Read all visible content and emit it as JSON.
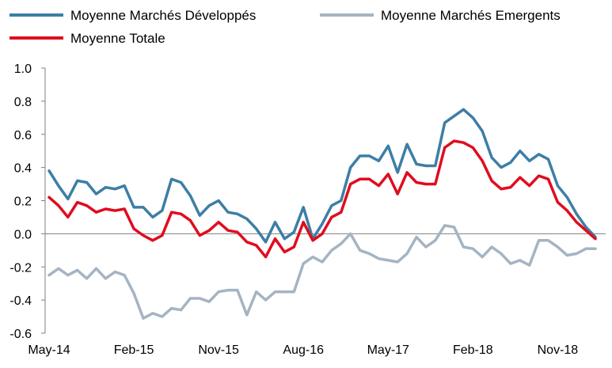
{
  "chart_data": {
    "type": "line",
    "title": "",
    "xlabel": "",
    "ylabel": "",
    "ylim": [
      -0.6,
      1.0
    ],
    "yticks": [
      "1.0",
      "0.8",
      "0.6",
      "0.4",
      "0.2",
      "0.0",
      "-0.2",
      "-0.4",
      "-0.6"
    ],
    "x_tick_labels": [
      "May-14",
      "Feb-15",
      "Nov-15",
      "Aug-16",
      "May-17",
      "Feb-18",
      "Nov-18"
    ],
    "x_tick_months": [
      0,
      9,
      18,
      27,
      36,
      45,
      54
    ],
    "grid": false,
    "legend_position": "top",
    "colors": {
      "developed": "#3d7ea6",
      "emerging": "#a5b4c2",
      "total": "#e00c1f",
      "axis": "#7f7f7f"
    },
    "series": [
      {
        "name": "Moyenne Marchés Développés",
        "key": "developed",
        "values": [
          0.38,
          0.29,
          0.21,
          0.32,
          0.31,
          0.24,
          0.28,
          0.27,
          0.29,
          0.16,
          0.16,
          0.1,
          0.14,
          0.33,
          0.31,
          0.23,
          0.11,
          0.17,
          0.2,
          0.13,
          0.12,
          0.09,
          0.03,
          -0.05,
          0.07,
          -0.03,
          0.01,
          0.16,
          -0.03,
          0.06,
          0.17,
          0.2,
          0.4,
          0.47,
          0.47,
          0.44,
          0.53,
          0.37,
          0.54,
          0.42,
          0.41,
          0.41,
          0.67,
          0.71,
          0.75,
          0.7,
          0.62,
          0.46,
          0.4,
          0.43,
          0.5,
          0.44,
          0.48,
          0.45,
          0.29,
          0.22,
          0.12,
          0.04,
          -0.02
        ]
      },
      {
        "name": "Moyenne Marchés Emergents",
        "key": "emerging",
        "values": [
          -0.25,
          -0.21,
          -0.25,
          -0.22,
          -0.27,
          -0.21,
          -0.27,
          -0.23,
          -0.25,
          -0.36,
          -0.51,
          -0.48,
          -0.5,
          -0.45,
          -0.46,
          -0.39,
          -0.39,
          -0.41,
          -0.35,
          -0.34,
          -0.34,
          -0.49,
          -0.35,
          -0.4,
          -0.35,
          -0.35,
          -0.35,
          -0.18,
          -0.14,
          -0.17,
          -0.1,
          -0.06,
          0.0,
          -0.1,
          -0.12,
          -0.15,
          -0.16,
          -0.17,
          -0.12,
          -0.02,
          -0.08,
          -0.04,
          0.05,
          0.04,
          -0.08,
          -0.09,
          -0.14,
          -0.08,
          -0.12,
          -0.18,
          -0.16,
          -0.19,
          -0.04,
          -0.04,
          -0.08,
          -0.13,
          -0.12,
          -0.09,
          -0.09
        ]
      },
      {
        "name": "Moyenne Totale",
        "key": "total",
        "values": [
          0.22,
          0.17,
          0.1,
          0.19,
          0.17,
          0.13,
          0.15,
          0.14,
          0.15,
          0.03,
          -0.01,
          -0.04,
          -0.01,
          0.13,
          0.12,
          0.08,
          -0.01,
          0.02,
          0.07,
          0.02,
          0.01,
          -0.05,
          -0.07,
          -0.14,
          -0.03,
          -0.11,
          -0.08,
          0.07,
          -0.04,
          0.0,
          0.1,
          0.13,
          0.3,
          0.33,
          0.33,
          0.29,
          0.36,
          0.24,
          0.37,
          0.31,
          0.3,
          0.3,
          0.52,
          0.56,
          0.55,
          0.52,
          0.44,
          0.32,
          0.27,
          0.28,
          0.34,
          0.29,
          0.35,
          0.33,
          0.19,
          0.14,
          0.07,
          0.02,
          -0.03
        ]
      }
    ]
  }
}
